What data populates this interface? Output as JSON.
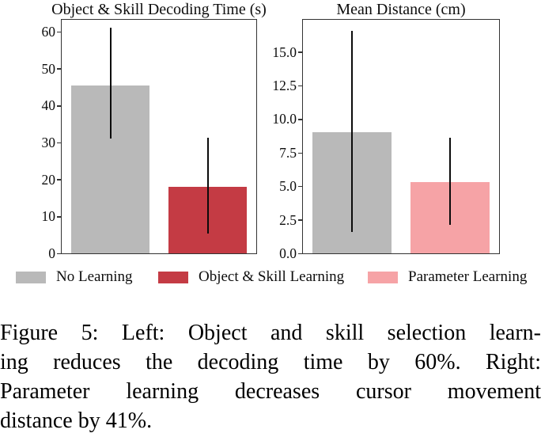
{
  "chart_data": [
    {
      "type": "bar",
      "title": "Object & Skill Decoding Time (s)",
      "categories": [
        "No Learning",
        "Object & Skill Learning"
      ],
      "values": [
        45.5,
        18.0
      ],
      "error_low": [
        31.0,
        5.3
      ],
      "error_high": [
        61.0,
        31.2
      ],
      "bar_colors": [
        "#b9b9b9",
        "#c43b44"
      ],
      "ytick_values": [
        0,
        10,
        20,
        30,
        40,
        50,
        60
      ],
      "ytick_labels": [
        "0",
        "10",
        "20",
        "30",
        "40",
        "50",
        "60"
      ],
      "ylim": [
        0,
        63.2
      ],
      "xlabel": "",
      "ylabel": "",
      "grid": false,
      "error_bars": true,
      "legend_position": "below-figure"
    },
    {
      "type": "bar",
      "title": "Mean Distance (cm)",
      "categories": [
        "No Learning",
        "Parameter Learning"
      ],
      "values": [
        9.0,
        5.3
      ],
      "error_low": [
        1.6,
        2.1
      ],
      "error_high": [
        16.6,
        8.6
      ],
      "bar_colors": [
        "#b9b9b9",
        "#f6a3a6"
      ],
      "ytick_values": [
        0,
        2.5,
        5,
        7.5,
        10,
        12.5,
        15
      ],
      "ytick_labels": [
        "0.0",
        "2.5",
        "5.0",
        "7.5",
        "10.0",
        "12.5",
        "15.0"
      ],
      "ylim": [
        0,
        17.4
      ],
      "xlabel": "",
      "ylabel": "",
      "grid": false,
      "error_bars": true,
      "legend_position": "below-figure"
    }
  ],
  "legend": {
    "items": [
      {
        "label": "No Learning",
        "color": "#b9b9b9"
      },
      {
        "label": "Object & Skill Learning",
        "color": "#c43b44"
      },
      {
        "label": "Parameter Learning",
        "color": "#f6a3a6"
      }
    ]
  },
  "caption": {
    "lines": [
      "Figure 5: Left: Object and skill selection learn-",
      "ing reduces the decoding time by 60%.  Right:",
      "Parameter learning decreases cursor movement",
      "distance by 41%."
    ]
  },
  "colors": {
    "background": "#ffffff",
    "axis": "#333333",
    "error_bar": "#0b0b0b",
    "text": "#111111"
  }
}
